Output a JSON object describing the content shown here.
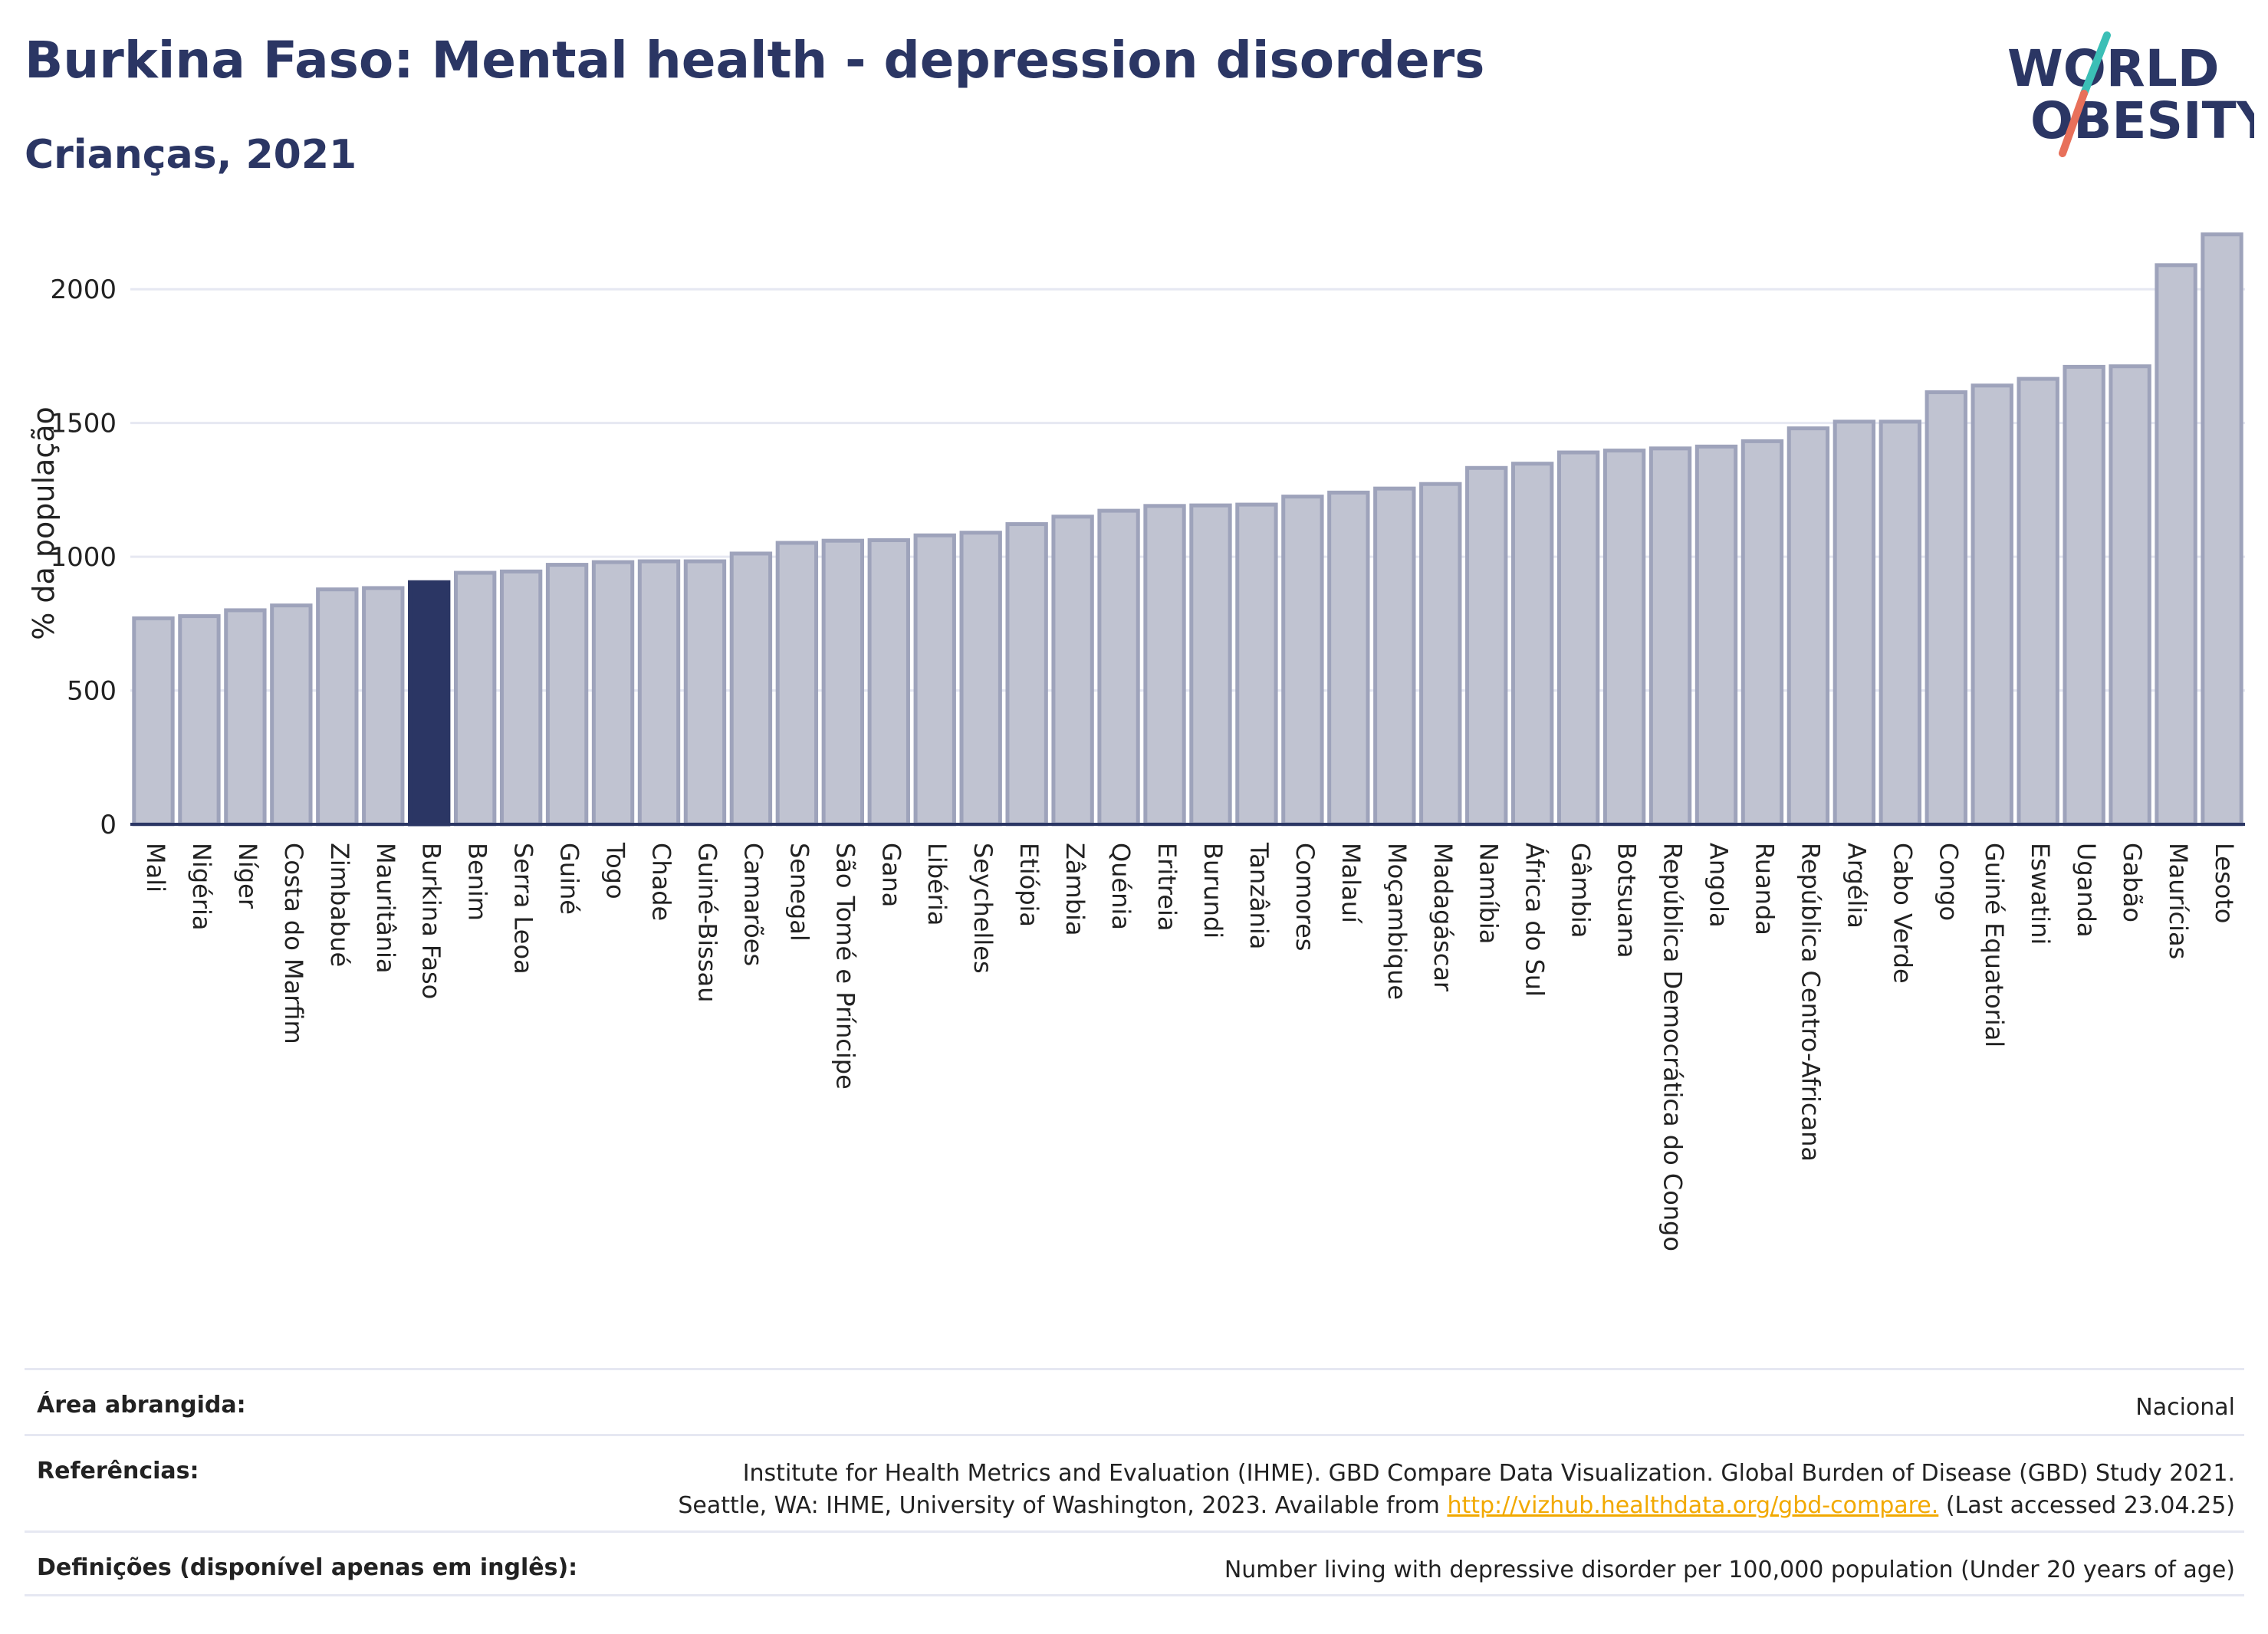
{
  "header": {
    "title": "Burkina Faso: Mental health - depression disorders",
    "subtitle": "Crianças, 2021"
  },
  "logo": {
    "line1": "WORLD",
    "line2": "OBESITY",
    "colors": {
      "text": "#2b3664",
      "slash_top": "#3bbfb6",
      "slash_bottom": "#e8705a"
    }
  },
  "colors": {
    "highlight": "#2b3664",
    "bar_fill": "#c0c3d1",
    "bar_stroke": "#9ea3bb",
    "grid": "#e6e8f2"
  },
  "chart_data": {
    "type": "bar",
    "title": "Burkina Faso: Mental health - depression disorders",
    "ylabel": "% da população",
    "ylim": [
      0,
      2250
    ],
    "yticks": [
      0,
      500,
      1000,
      1500,
      2000
    ],
    "grid": true,
    "highlight_category": "Burkina Faso",
    "categories": [
      "Mali",
      "Nigéria",
      "Níger",
      "Costa do Marfim",
      "Zimbabué",
      "Mauritânia",
      "Burkina Faso",
      "Benim",
      "Serra Leoa",
      "Guiné",
      "Togo",
      "Chade",
      "Guiné-Bissau",
      "Camarões",
      "Senegal",
      "São Tomé e Príncipe",
      "Gana",
      "Libéria",
      "Seychelles",
      "Etiópia",
      "Zâmbia",
      "Quénia",
      "Eritreia",
      "Burundi",
      "Tanzânia",
      "Comores",
      "Malauí",
      "Moçambique",
      "Madagáscar",
      "Namíbia",
      "África do Sul",
      "Gâmbia",
      "Botsuana",
      "República Democrática do Congo",
      "Angola",
      "Ruanda",
      "República Centro-Africana",
      "Argélia",
      "Cabo Verde",
      "Congo",
      "Guiné Equatorial",
      "Eswatini",
      "Uganda",
      "Gabão",
      "Maurícias",
      "Lesoto"
    ],
    "values": [
      770,
      778,
      800,
      818,
      878,
      883,
      905,
      940,
      945,
      970,
      980,
      983,
      983,
      1012,
      1052,
      1060,
      1062,
      1080,
      1090,
      1122,
      1150,
      1172,
      1190,
      1192,
      1195,
      1225,
      1240,
      1255,
      1272,
      1332,
      1348,
      1390,
      1397,
      1405,
      1412,
      1432,
      1480,
      1505,
      1505,
      1615,
      1640,
      1665,
      1710,
      1712,
      2090,
      2205
    ]
  },
  "footer": {
    "area_label": "Área abrangida:",
    "area_value": "Nacional",
    "ref_label": "Referências:",
    "ref_line1": "Institute for Health Metrics and Evaluation (IHME). GBD Compare Data Visualization. Global Burden of Disease (GBD) Study 2021.",
    "ref_line2": "Seattle, WA: IHME, University of Washington, 2023. Available from",
    "ref_link": "http://vizhub.healthdata.org/gbd-compare.",
    "ref_suffix": "(Last accessed 23.04.25)",
    "def_label": "Definições (disponível apenas em inglês):",
    "def_value": "Number living with depressive disorder per 100,000 population (Under 20 years of age)"
  }
}
